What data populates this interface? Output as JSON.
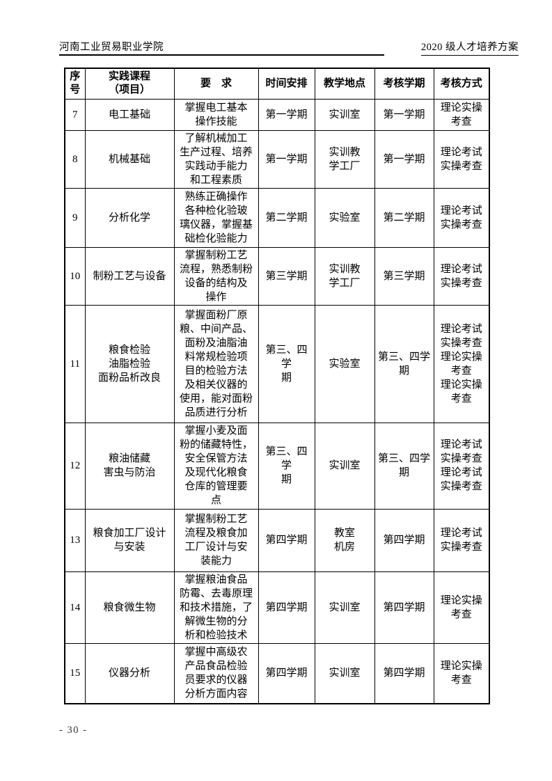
{
  "header": {
    "left": "河南工业贸易职业学院",
    "right": "2020 级人才培养方案"
  },
  "table": {
    "header": {
      "no": [
        "序",
        "号"
      ],
      "course": [
        "实践课程",
        "（项目）"
      ],
      "requirement": "要　求",
      "time": "时间安排",
      "location": "教学地点",
      "semester": "考核学期",
      "method": "考核方式"
    },
    "rows": [
      {
        "no": "7",
        "course": [
          "电工基础"
        ],
        "requirement": [
          "掌握电工基本",
          "操作技能"
        ],
        "time": [
          "第一学期"
        ],
        "location": [
          "实训室"
        ],
        "semester": [
          "第一学期"
        ],
        "method": [
          "理论实操",
          "考查"
        ]
      },
      {
        "no": "8",
        "course": [
          "机械基础"
        ],
        "requirement": [
          "了解机械加工",
          "生产过程、培养",
          "实践动手能力",
          "和工程素质"
        ],
        "time": [
          "第一学期"
        ],
        "location": [
          "实训教",
          "学工厂"
        ],
        "semester": [
          "第一学期"
        ],
        "method": [
          "理论考试",
          "实操考查"
        ]
      },
      {
        "no": "9",
        "course": [
          "分析化学"
        ],
        "requirement": [
          "熟练正确操作",
          "各种检化验玻",
          "璃仪器，掌握基",
          "础检化验能力"
        ],
        "time": [
          "第二学期"
        ],
        "location": [
          "实验室"
        ],
        "semester": [
          "第二学期"
        ],
        "method": [
          "理论考试",
          "实操考查"
        ]
      },
      {
        "no": "10",
        "course": [
          "制粉工艺与设备"
        ],
        "requirement": [
          "掌握制粉工艺",
          "流程，熟悉制粉",
          "设备的结构及",
          "操作"
        ],
        "time": [
          "第三学期"
        ],
        "location": [
          "实训教",
          "学工厂"
        ],
        "semester": [
          "第三学期"
        ],
        "method": [
          "理论考试",
          "实操考查"
        ]
      },
      {
        "no": "11",
        "course": [
          "粮食检验",
          "油脂检验",
          "面粉品析改良"
        ],
        "requirement": [
          "掌握面粉厂原",
          "粮、中间产品、",
          "面粉及油脂油",
          "料常规检验项",
          "目的检验方法",
          "及相关仪器的",
          "使用，能对面粉",
          "品质进行分析"
        ],
        "time": [
          "第三、四学",
          "期"
        ],
        "location": [
          "实验室"
        ],
        "semester": [
          "第三、四学",
          "期"
        ],
        "method": [
          "理论考试",
          "实操考查",
          "理论实操",
          "考查",
          "理论实操",
          "考查"
        ]
      },
      {
        "no": "12",
        "course": [
          "粮油储藏",
          "害虫与防治"
        ],
        "requirement": [
          "掌握小麦及面",
          "粉的储藏特性，",
          "安全保管方法",
          "及现代化粮食",
          "仓库的管理要",
          "点"
        ],
        "time": [
          "第三、四学",
          "期"
        ],
        "location": [
          "实训室"
        ],
        "semester": [
          "第三、四学",
          "期"
        ],
        "method": [
          "理论考试",
          "实操考查",
          "理论考试",
          "实操考查"
        ]
      },
      {
        "no": "13",
        "course": [
          "粮食加工厂设计",
          "与安装"
        ],
        "course_align": "left",
        "requirement": [
          "掌握制粉工艺",
          "流程及粮食加",
          "工厂设计与安",
          "装能力"
        ],
        "time": [
          "第四学期"
        ],
        "location": [
          "教室",
          "机房"
        ],
        "semester": [
          "第四学期"
        ],
        "method": [
          "理论考试",
          "实操考查"
        ]
      },
      {
        "no": "14",
        "course": [
          "粮食微生物"
        ],
        "requirement": [
          "掌握粮油食品",
          "防霉、去毒原理",
          "和技术措施，了",
          "解微生物的分",
          "析和检验技术"
        ],
        "time": [
          "第四学期"
        ],
        "location": [
          "实训室"
        ],
        "semester": [
          "第四学期"
        ],
        "method": [
          "理论实操",
          "考查"
        ]
      },
      {
        "no": "15",
        "course": [
          "仪器分析"
        ],
        "requirement": [
          "掌握中高级农",
          "产品食品检验",
          "员要求的仪器",
          "分析方面内容"
        ],
        "time": [
          "第四学期"
        ],
        "location": [
          "实训室"
        ],
        "semester": [
          "第四学期"
        ],
        "method": [
          "理论实操",
          "考查"
        ]
      }
    ]
  },
  "footer": {
    "page_label": "- 30 -"
  }
}
